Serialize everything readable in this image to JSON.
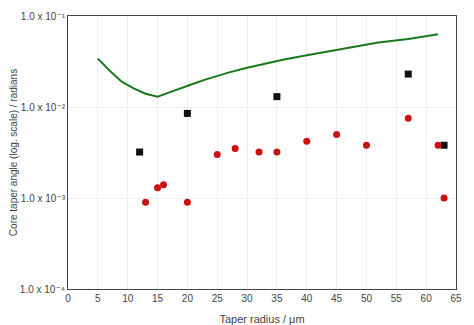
{
  "chart_data": {
    "type": "line",
    "title": "",
    "xlabel": "Taper radius / μm",
    "ylabel": "Core taper angle (log. scale) / radians",
    "log": "y",
    "grid": true,
    "xlim": [
      0,
      65
    ],
    "xticks": [
      0,
      5,
      10,
      15,
      20,
      25,
      30,
      35,
      40,
      45,
      50,
      55,
      60,
      65
    ],
    "ylim": [
      0.0001,
      0.1
    ],
    "yticks": [
      {
        "value": 0.0001,
        "label": "1.0 x 10⁻⁴"
      },
      {
        "value": 0.001,
        "label": "1.0 x 10⁻³"
      },
      {
        "value": 0.01,
        "label": "1.0 x 10⁻²"
      },
      {
        "value": 0.1,
        "label": "1.0 x 10⁻¹"
      }
    ],
    "series": [
      {
        "type": "line",
        "color": "#1a7a1a",
        "line_style": "solid",
        "x": [
          5,
          7,
          9,
          11,
          13,
          15,
          17,
          19,
          21,
          23,
          25,
          27,
          30,
          33,
          36,
          40,
          44,
          48,
          52,
          57,
          62
        ],
        "values": [
          0.034,
          0.025,
          0.019,
          0.016,
          0.014,
          0.013,
          0.0145,
          0.016,
          0.018,
          0.02,
          0.022,
          0.024,
          0.027,
          0.03,
          0.033,
          0.037,
          0.041,
          0.046,
          0.051,
          0.056,
          0.063
        ]
      },
      {
        "type": "scatter",
        "color": "#111111",
        "marker": "square",
        "x": [
          12,
          20,
          35,
          57,
          63
        ],
        "values": [
          0.0032,
          0.0085,
          0.013,
          0.023,
          0.0038
        ]
      },
      {
        "type": "scatter",
        "color": "#cc1111",
        "marker": "circle",
        "x": [
          13,
          15,
          16,
          20,
          25,
          28,
          32,
          35,
          40,
          45,
          50,
          57,
          62,
          63
        ],
        "values": [
          0.0009,
          0.0013,
          0.0014,
          0.0009,
          0.003,
          0.0035,
          0.0032,
          0.0032,
          0.0042,
          0.005,
          0.0038,
          0.0075,
          0.0038,
          0.001
        ]
      }
    ]
  }
}
